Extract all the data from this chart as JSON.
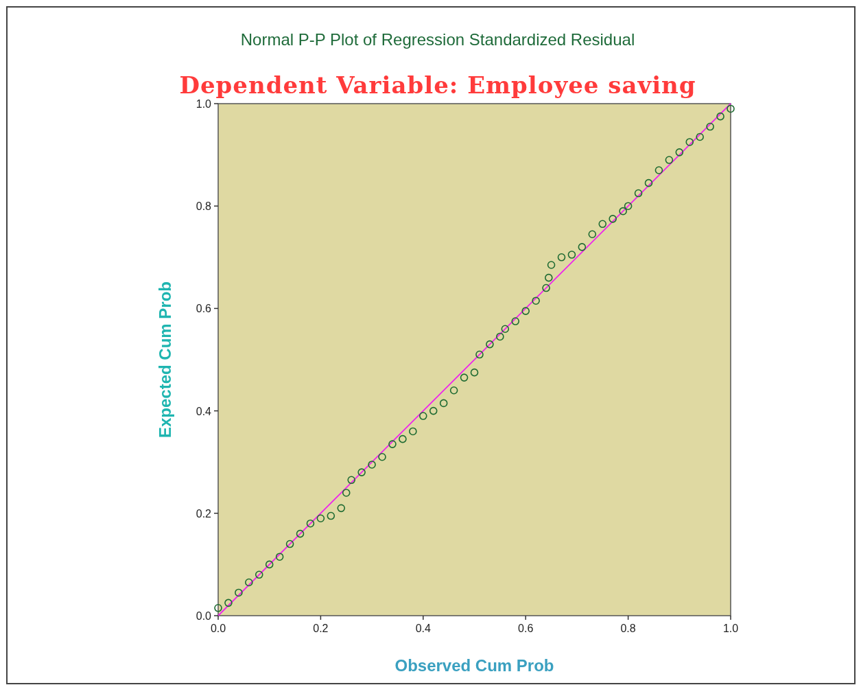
{
  "chart_data": {
    "type": "scatter",
    "title": "Normal P-P Plot of Regression Standardized Residual",
    "subtitle": "Dependent Variable: Employee saving",
    "xlabel": "Observed Cum Prob",
    "ylabel": "Expected Cum Prob",
    "xlim": [
      0,
      1
    ],
    "ylim": [
      0,
      1
    ],
    "xticks": [
      {
        "value": 0,
        "label": "0.0"
      },
      0.2,
      0.4,
      0.6,
      0.8,
      {
        "value": 1,
        "label": "1.0"
      }
    ],
    "yticks": [
      {
        "value": 0,
        "label": "0.0"
      },
      0.2,
      0.4,
      0.6,
      0.8,
      {
        "value": 1,
        "label": "1.0"
      }
    ],
    "marker": "circle",
    "series": [
      {
        "color": "#1f6b32",
        "x": [
          0,
          0.02,
          0.04,
          0.06,
          0.08,
          0.1,
          0.12,
          0.14,
          0.16,
          0.18,
          0.2,
          0.22,
          0.24,
          0.25,
          0.26,
          0.28,
          0.3,
          0.32,
          0.34,
          0.36,
          0.38,
          0.4,
          0.42,
          0.44,
          0.46,
          0.48,
          0.5,
          0.51,
          0.53,
          0.55,
          0.56,
          0.58,
          0.6,
          0.62,
          0.64,
          0.645,
          0.65,
          0.67,
          0.69,
          0.71,
          0.73,
          0.75,
          0.77,
          0.79,
          0.8,
          0.82,
          0.84,
          0.86,
          0.88,
          0.9,
          0.92,
          0.94,
          0.96,
          0.98,
          1
        ],
        "values": [
          0.015,
          0.025,
          0.045,
          0.065,
          0.08,
          0.1,
          0.115,
          0.14,
          0.16,
          0.18,
          0.19,
          0.195,
          0.21,
          0.24,
          0.265,
          0.28,
          0.295,
          0.31,
          0.335,
          0.345,
          0.36,
          0.39,
          0.4,
          0.415,
          0.44,
          0.465,
          0.475,
          0.51,
          0.53,
          0.545,
          0.56,
          0.575,
          0.595,
          0.615,
          0.64,
          0.66,
          0.685,
          0.7,
          0.705,
          0.72,
          0.745,
          0.765,
          0.775,
          0.79,
          0.8,
          0.825,
          0.845,
          0.87,
          0.89,
          0.905,
          0.925,
          0.935,
          0.955,
          0.975,
          0.99
        ]
      },
      {
        "type": "line",
        "marker": "none",
        "color": "#ee22ee",
        "x": [
          0,
          1
        ],
        "values": [
          0,
          1
        ]
      }
    ]
  }
}
